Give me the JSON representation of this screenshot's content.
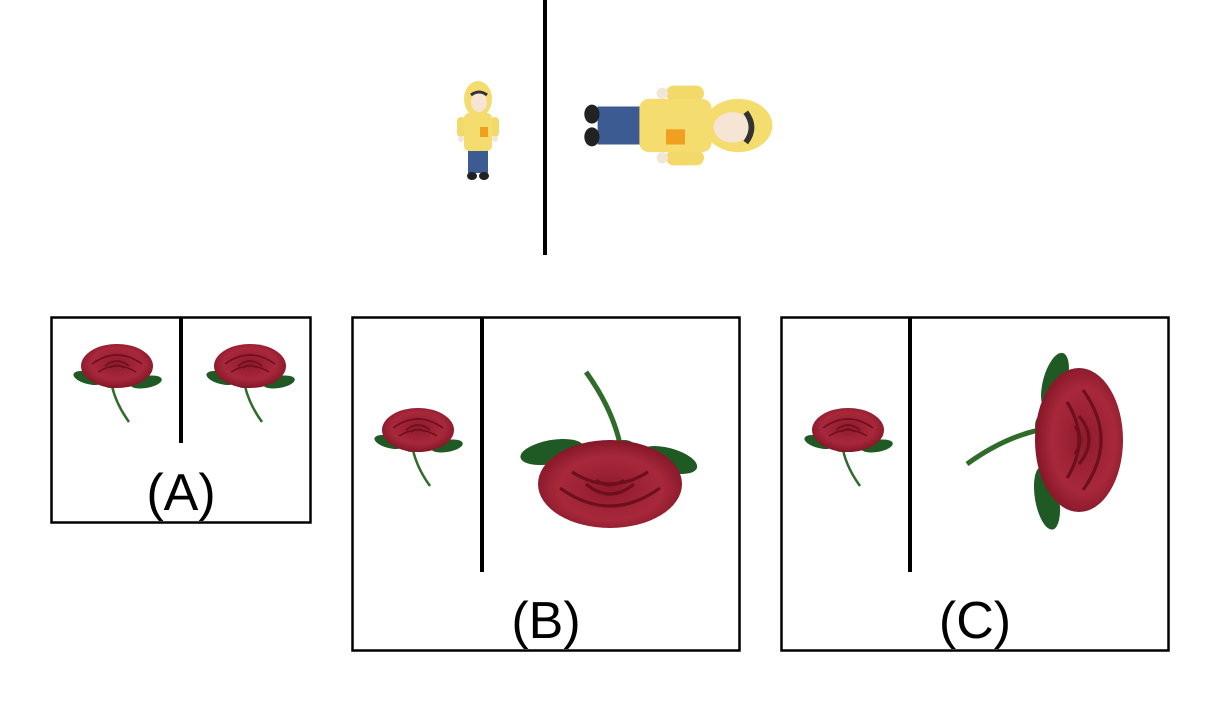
{
  "options": [
    {
      "label": "(A)"
    },
    {
      "label": "(B)"
    },
    {
      "label": "(C)"
    }
  ]
}
